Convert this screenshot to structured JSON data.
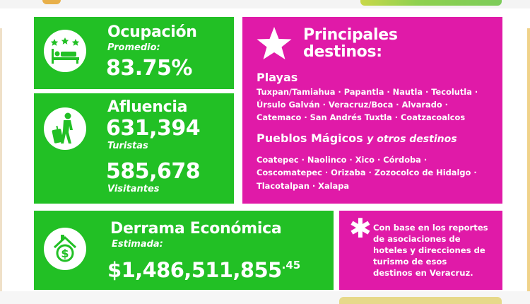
{
  "ocupacion": {
    "title": "Ocupación",
    "subtitle": "Promedio:",
    "value": "83.75%",
    "icon": "hotel-bed-icon"
  },
  "afluencia": {
    "title": "Afluencia",
    "turistas_value": "631,394",
    "turistas_label": "Turistas",
    "visitantes_value": "585,678",
    "visitantes_label": "Visitantes",
    "icon": "traveler-luggage-icon"
  },
  "destinos": {
    "title_line1": "Principales",
    "title_line2": "destinos:",
    "icon": "star-icon",
    "playas_heading": "Playas",
    "playas_lines": [
      "Tuxpan/Tamiahua · Papantla · Nautla · Tecolutla ·",
      "Úrsulo Galván · Veracruz/Boca · Alvarado ·",
      "Catemaco · San Andrés Tuxtla · Coatzacoalcos"
    ],
    "pueblos_heading": "Pueblos Mágicos",
    "pueblos_heading_suffix": "y otros destinos",
    "pueblos_lines": [
      "Coatepec · Naolinco · Xico · Córdoba ·",
      "Coscomatepec · Orizaba · Zozocolco de Hidalgo ·",
      "Tlacotalpan · Xalapa"
    ]
  },
  "derrama": {
    "title": "Derrama Económica",
    "subtitle": "Estimada:",
    "value_main": "$1,486,511,855",
    "value_cents": ".45",
    "icon": "money-house-icon"
  },
  "footnote": {
    "icon": "asterisk-icon",
    "lines": [
      "Con base en los reportes",
      "de asociaciones de",
      "hoteles y direcciones de",
      "turismo de esos",
      "destinos en Veracruz."
    ]
  },
  "colors": {
    "green": "#22c025",
    "magenta": "#e01aa8"
  }
}
